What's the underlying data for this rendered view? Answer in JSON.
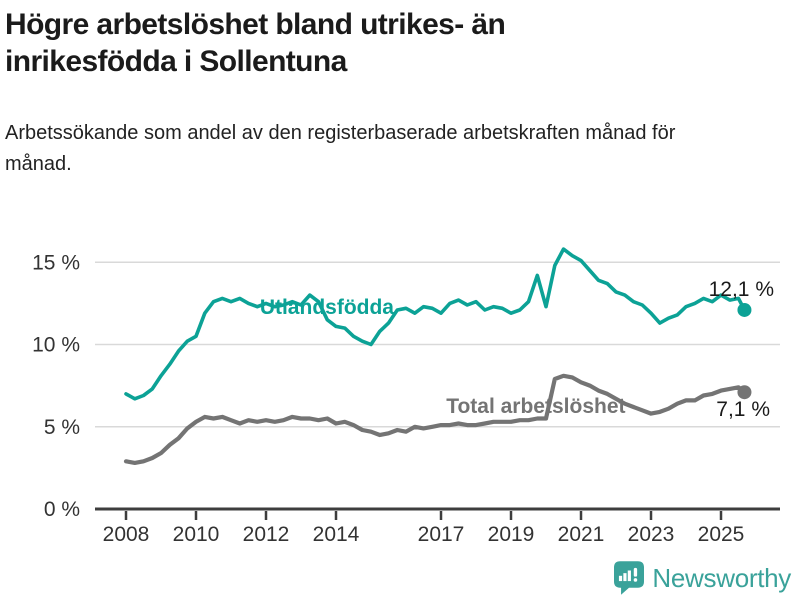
{
  "header": {
    "title": "Högre arbetslöshet bland utrikes- än inrikesfödda i Sollentuna",
    "title_lines": [
      "Högre arbetslöshet bland utrikes- än",
      "inrikesfödda i Sollentuna"
    ],
    "subtitle": "Arbetssökande som andel av den registerbaserade arbetskraften månad för månad."
  },
  "chart_data": {
    "type": "line",
    "title": "Högre arbetslöshet bland utrikes- än inrikesfödda i Sollentuna",
    "subtitle": "Arbetssökande som andel av den registerbaserade arbetskraften månad för månad.",
    "unit": "%",
    "grid": true,
    "legend_position": "inline-labels",
    "x_label_years": [
      2008,
      2010,
      2012,
      2014,
      2017,
      2019,
      2021,
      2023,
      2025
    ],
    "y_ticks": [
      {
        "value": 0,
        "label": "0 %"
      },
      {
        "value": 5,
        "label": "5 %"
      },
      {
        "value": 10,
        "label": "10 %"
      },
      {
        "value": 15,
        "label": "15 %"
      }
    ],
    "y_range": [
      0,
      16.5
    ],
    "x_range": [
      2008,
      2025.67
    ],
    "x": [
      2008,
      2008.25,
      2008.5,
      2008.75,
      2009,
      2009.25,
      2009.5,
      2009.75,
      2010,
      2010.25,
      2010.5,
      2010.75,
      2011,
      2011.25,
      2011.5,
      2011.75,
      2012,
      2012.25,
      2012.5,
      2012.75,
      2013,
      2013.25,
      2013.5,
      2013.75,
      2014,
      2014.25,
      2014.5,
      2014.75,
      2015,
      2015.25,
      2015.5,
      2015.75,
      2016,
      2016.25,
      2016.5,
      2016.75,
      2017,
      2017.25,
      2017.5,
      2017.75,
      2018,
      2018.25,
      2018.5,
      2018.75,
      2019,
      2019.25,
      2019.5,
      2019.75,
      2020,
      2020.25,
      2020.5,
      2020.75,
      2021,
      2021.25,
      2021.5,
      2021.75,
      2022,
      2022.25,
      2022.5,
      2022.75,
      2023,
      2023.25,
      2023.5,
      2023.75,
      2024,
      2024.25,
      2024.5,
      2024.75,
      2025,
      2025.25,
      2025.5,
      2025.67
    ],
    "series": [
      {
        "name": "Utlandsfödda",
        "color": "#0ca296",
        "line_width": 3.6,
        "end_label": "12,1 %",
        "end_value": 12.1,
        "label_anchor": {
          "x": 2013.74,
          "y": 12.28
        },
        "values": [
          7.0,
          6.7,
          6.9,
          7.3,
          8.1,
          8.8,
          9.6,
          10.2,
          10.5,
          11.9,
          12.6,
          12.8,
          12.6,
          12.8,
          12.5,
          12.3,
          12.5,
          12.3,
          12.4,
          12.6,
          12.4,
          13.0,
          12.6,
          11.5,
          11.1,
          11.0,
          10.5,
          10.2,
          10.0,
          10.8,
          11.3,
          12.1,
          12.2,
          11.9,
          12.3,
          12.2,
          11.9,
          12.5,
          12.7,
          12.4,
          12.6,
          12.1,
          12.3,
          12.2,
          11.9,
          12.1,
          12.6,
          14.2,
          12.3,
          14.8,
          15.8,
          15.4,
          15.1,
          14.5,
          13.9,
          13.7,
          13.2,
          13.0,
          12.6,
          12.4,
          11.9,
          11.3,
          11.6,
          11.8,
          12.3,
          12.5,
          12.8,
          12.6,
          13.0,
          12.7,
          12.8,
          12.1
        ]
      },
      {
        "name": "Total arbetslöshet",
        "color": "#747474",
        "line_width": 4.2,
        "end_label": "7,1 %",
        "end_value": 7.1,
        "label_anchor": {
          "x": 2019.71,
          "y": 6.26
        },
        "values": [
          2.9,
          2.8,
          2.9,
          3.1,
          3.4,
          3.9,
          4.3,
          4.9,
          5.3,
          5.6,
          5.5,
          5.6,
          5.4,
          5.2,
          5.4,
          5.3,
          5.4,
          5.3,
          5.4,
          5.6,
          5.5,
          5.5,
          5.4,
          5.5,
          5.2,
          5.3,
          5.1,
          4.8,
          4.7,
          4.5,
          4.6,
          4.8,
          4.7,
          5.0,
          4.9,
          5.0,
          5.1,
          5.1,
          5.2,
          5.1,
          5.1,
          5.2,
          5.3,
          5.3,
          5.3,
          5.4,
          5.4,
          5.5,
          5.5,
          7.9,
          8.1,
          8.0,
          7.7,
          7.5,
          7.2,
          7.0,
          6.7,
          6.4,
          6.2,
          6.0,
          5.8,
          5.9,
          6.1,
          6.4,
          6.6,
          6.6,
          6.9,
          7.0,
          7.2,
          7.3,
          7.4,
          7.1
        ]
      }
    ]
  },
  "footer": {
    "brand": "Newsworthy",
    "brand_color": "#3aa29a",
    "logo_icon": "newsworthy-speech-bubble-chart-icon"
  },
  "colors": {
    "accent_teal": "#0ca296",
    "series_gray": "#747474",
    "grid_line": "#d9d9d9",
    "axis_line": "#3d3d3d",
    "title_text": "#1b1b1b",
    "axis_text": "#333333",
    "value_label_text": "#1a1a1a"
  }
}
